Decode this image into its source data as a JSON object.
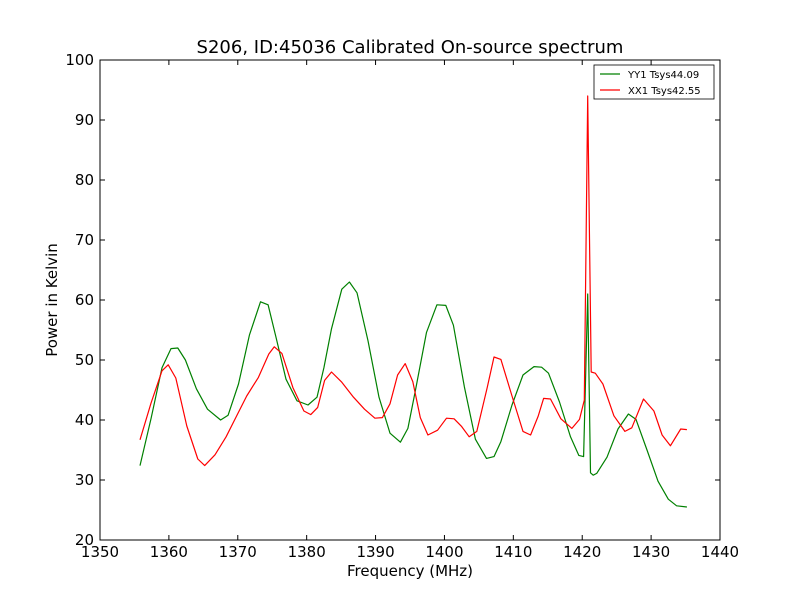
{
  "chart_data": {
    "type": "line",
    "title": "S206, ID:45036 Calibrated On-source spectrum",
    "xlabel": "Frequency (MHz)",
    "ylabel": "Power in Kelvin",
    "xlim": [
      1350,
      1440
    ],
    "ylim": [
      20,
      100
    ],
    "xticks": [
      1350,
      1360,
      1370,
      1380,
      1390,
      1400,
      1410,
      1420,
      1430,
      1440
    ],
    "yticks": [
      20,
      30,
      40,
      50,
      60,
      70,
      80,
      90,
      100
    ],
    "grid": false,
    "legend_position": "top-right",
    "series": [
      {
        "name": "YY1 Tsys44.09",
        "color": "#008000",
        "x": [
          1355.8,
          1357.4,
          1359.0,
          1360.3,
          1361.3,
          1362.4,
          1364.0,
          1365.6,
          1367.5,
          1368.6,
          1370.1,
          1371.7,
          1373.3,
          1374.4,
          1375.5,
          1377.0,
          1378.6,
          1380.2,
          1381.5,
          1382.5,
          1383.6,
          1385.1,
          1386.2,
          1387.3,
          1388.9,
          1390.5,
          1392.1,
          1393.6,
          1394.7,
          1395.8,
          1397.4,
          1398.9,
          1400.2,
          1401.3,
          1402.9,
          1404.5,
          1406.1,
          1407.2,
          1408.2,
          1409.8,
          1411.4,
          1413.0,
          1414.1,
          1415.1,
          1416.7,
          1418.3,
          1419.5,
          1420.2,
          1420.8,
          1421.2,
          1421.6,
          1422.1,
          1423.6,
          1425.2,
          1426.7,
          1427.8,
          1429.4,
          1431.0,
          1432.5,
          1433.7,
          1435.2
        ],
        "values": [
          32.4,
          40.2,
          48.7,
          51.9,
          52.0,
          50.0,
          45.2,
          41.8,
          40.0,
          40.8,
          46.0,
          54.2,
          59.7,
          59.2,
          54.0,
          46.8,
          43.2,
          42.5,
          43.8,
          48.7,
          55.2,
          61.8,
          63.0,
          61.2,
          53.2,
          43.8,
          37.8,
          36.3,
          38.6,
          45.0,
          54.6,
          59.2,
          59.1,
          55.8,
          45.5,
          36.8,
          33.6,
          33.9,
          36.4,
          42.5,
          47.5,
          48.9,
          48.8,
          47.8,
          43.0,
          37.2,
          34.1,
          33.9,
          61.0,
          31.2,
          30.8,
          31.1,
          33.8,
          38.5,
          41.0,
          40.1,
          35.0,
          29.8,
          26.8,
          25.7,
          25.5
        ]
      },
      {
        "name": "XX1 Tsys42.55",
        "color": "#ff0000",
        "x": [
          1355.8,
          1357.4,
          1359.0,
          1359.9,
          1361.0,
          1362.6,
          1364.2,
          1365.2,
          1366.7,
          1368.3,
          1369.8,
          1371.3,
          1373.0,
          1374.5,
          1375.3,
          1376.4,
          1378.0,
          1379.6,
          1380.6,
          1381.6,
          1382.6,
          1383.6,
          1385.1,
          1386.8,
          1388.4,
          1389.9,
          1391.0,
          1392.1,
          1393.2,
          1394.3,
          1395.4,
          1396.5,
          1397.6,
          1399.0,
          1400.3,
          1401.4,
          1402.5,
          1403.6,
          1404.7,
          1406.2,
          1407.2,
          1408.2,
          1409.8,
          1411.4,
          1412.5,
          1413.6,
          1414.4,
          1415.4,
          1416.9,
          1418.5,
          1419.6,
          1420.3,
          1420.8,
          1421.3,
          1421.9,
          1423.0,
          1424.6,
          1426.2,
          1427.2,
          1428.9,
          1430.4,
          1431.6,
          1432.8,
          1434.3,
          1435.2
        ],
        "values": [
          36.7,
          42.8,
          48.2,
          49.2,
          47.0,
          39.0,
          33.5,
          32.4,
          34.2,
          37.2,
          40.6,
          44.0,
          47.1,
          51.0,
          52.2,
          51.1,
          45.4,
          41.5,
          40.9,
          42.1,
          46.6,
          48.0,
          46.3,
          43.8,
          41.8,
          40.3,
          40.4,
          42.7,
          47.5,
          49.4,
          46.4,
          40.4,
          37.5,
          38.3,
          40.3,
          40.2,
          38.9,
          37.2,
          38.1,
          45.4,
          50.5,
          50.1,
          44.0,
          38.1,
          37.5,
          40.6,
          43.6,
          43.5,
          40.2,
          38.6,
          40.1,
          43.3,
          94.0,
          48.0,
          47.8,
          46.0,
          40.7,
          38.1,
          38.7,
          43.5,
          41.5,
          37.5,
          35.7,
          38.5,
          38.4
        ]
      }
    ]
  }
}
